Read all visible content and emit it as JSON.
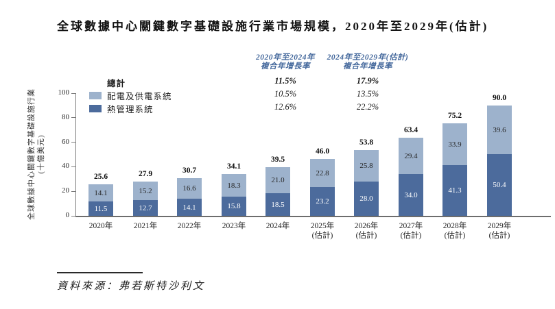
{
  "title": "全球數據中心關鍵數字基礎設施行業市場規模，2020年至2029年(估計)",
  "legend": {
    "total_label": "總計",
    "series": [
      {
        "label": "配電及供電系統",
        "color": "#9db2cc"
      },
      {
        "label": "熱管理系統",
        "color": "#4c6b9c"
      }
    ]
  },
  "cagr": {
    "columns": [
      {
        "header_line1": "2020年至2024年",
        "header_line2": "複合年增長率",
        "values": [
          "11.5%",
          "10.5%",
          "12.6%"
        ]
      },
      {
        "header_line1": "2024年至2029年(估計)",
        "header_line2": "複合年增長率",
        "values": [
          "17.9%",
          "13.5%",
          "22.2%"
        ]
      }
    ]
  },
  "chart_data": {
    "type": "bar",
    "stacked": true,
    "title": "全球數據中心關鍵數字基礎設施行業市場規模，2020年至2029年(估計)",
    "ylabel_line1": "全球數據中心關鍵數字基礎設施行業",
    "ylabel_line2": "(十億美元)",
    "ylim": [
      0,
      100
    ],
    "yticks": [
      0,
      20,
      40,
      60,
      80,
      100
    ],
    "grid": false,
    "legend_position": "upper-left",
    "categories": [
      {
        "line1": "2020年",
        "line2": ""
      },
      {
        "line1": "2021年",
        "line2": ""
      },
      {
        "line1": "2022年",
        "line2": ""
      },
      {
        "line1": "2023年",
        "line2": ""
      },
      {
        "line1": "2024年",
        "line2": ""
      },
      {
        "line1": "2025年",
        "line2": "(估計)"
      },
      {
        "line1": "2026年",
        "line2": "(估計)"
      },
      {
        "line1": "2027年",
        "line2": "(估計)"
      },
      {
        "line1": "2028年",
        "line2": "(估計)"
      },
      {
        "line1": "2029年",
        "line2": "(估計)"
      }
    ],
    "series": [
      {
        "name": "熱管理系統",
        "position": "bottom",
        "color": "#4c6b9c",
        "values": [
          11.5,
          12.7,
          14.1,
          15.8,
          18.5,
          23.2,
          28.0,
          34.0,
          41.3,
          50.4
        ]
      },
      {
        "name": "配電及供電系統",
        "position": "top",
        "color": "#9db2cc",
        "values": [
          14.1,
          15.2,
          16.6,
          18.3,
          21.0,
          22.8,
          25.8,
          29.4,
          33.9,
          39.6
        ]
      }
    ],
    "totals": [
      25.6,
      27.9,
      30.7,
      34.1,
      39.5,
      46.0,
      53.8,
      63.4,
      75.2,
      90.0
    ]
  },
  "source": "資料來源：弗若斯特沙利文",
  "colors": {
    "accent_blue": "#44689c",
    "axis_gray": "#7a7a7a"
  }
}
